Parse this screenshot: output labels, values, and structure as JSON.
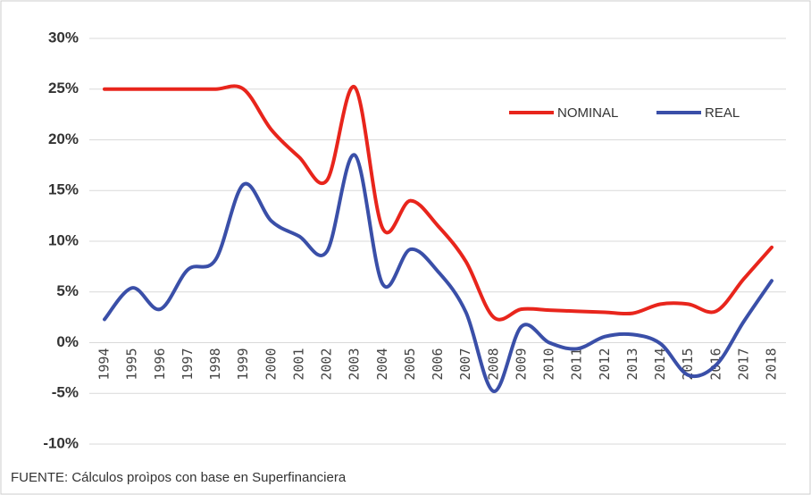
{
  "chart_data": {
    "type": "line",
    "categories": [
      "1994",
      "1995",
      "1996",
      "1997",
      "1998",
      "1999",
      "2000",
      "2001",
      "2002",
      "2003",
      "2004",
      "2005",
      "2006",
      "2007",
      "2008",
      "2009",
      "2010",
      "2011",
      "2012",
      "2013",
      "2014",
      "2015",
      "2016",
      "2017",
      "2018"
    ],
    "series": [
      {
        "name": "NOMINAL",
        "color": "#e8251c",
        "values": [
          25,
          25,
          25,
          25,
          25,
          25,
          21,
          18.3,
          16,
          25.2,
          11.3,
          14,
          11.5,
          8,
          2.5,
          3.3,
          3.2,
          3.1,
          3,
          2.9,
          3.8,
          3.8,
          3.1,
          6.3,
          9.4
        ]
      },
      {
        "name": "REAL",
        "color": "#3a4fa8",
        "values": [
          2.3,
          5.4,
          3.3,
          7.2,
          8.2,
          15.6,
          12,
          10.5,
          9,
          18.5,
          5.8,
          9.2,
          7,
          3,
          -4.8,
          1.6,
          0,
          -0.6,
          0.6,
          0.8,
          -0.1,
          -3.2,
          -2.2,
          2.1,
          6.1
        ]
      }
    ],
    "ylim": [
      -10,
      30
    ],
    "yticks": [
      {
        "value": -10,
        "label": "-10%"
      },
      {
        "value": -5,
        "label": "-5%"
      },
      {
        "value": 0,
        "label": "0%"
      },
      {
        "value": 5,
        "label": "5%"
      },
      {
        "value": 10,
        "label": "10%"
      },
      {
        "value": 15,
        "label": "15%"
      },
      {
        "value": 20,
        "label": "20%"
      },
      {
        "value": 25,
        "label": "25%"
      },
      {
        "value": 30,
        "label": "30%"
      }
    ],
    "grid": true,
    "note": "FUENTE: Cálculos proìpos con base en Superfinanciera"
  }
}
